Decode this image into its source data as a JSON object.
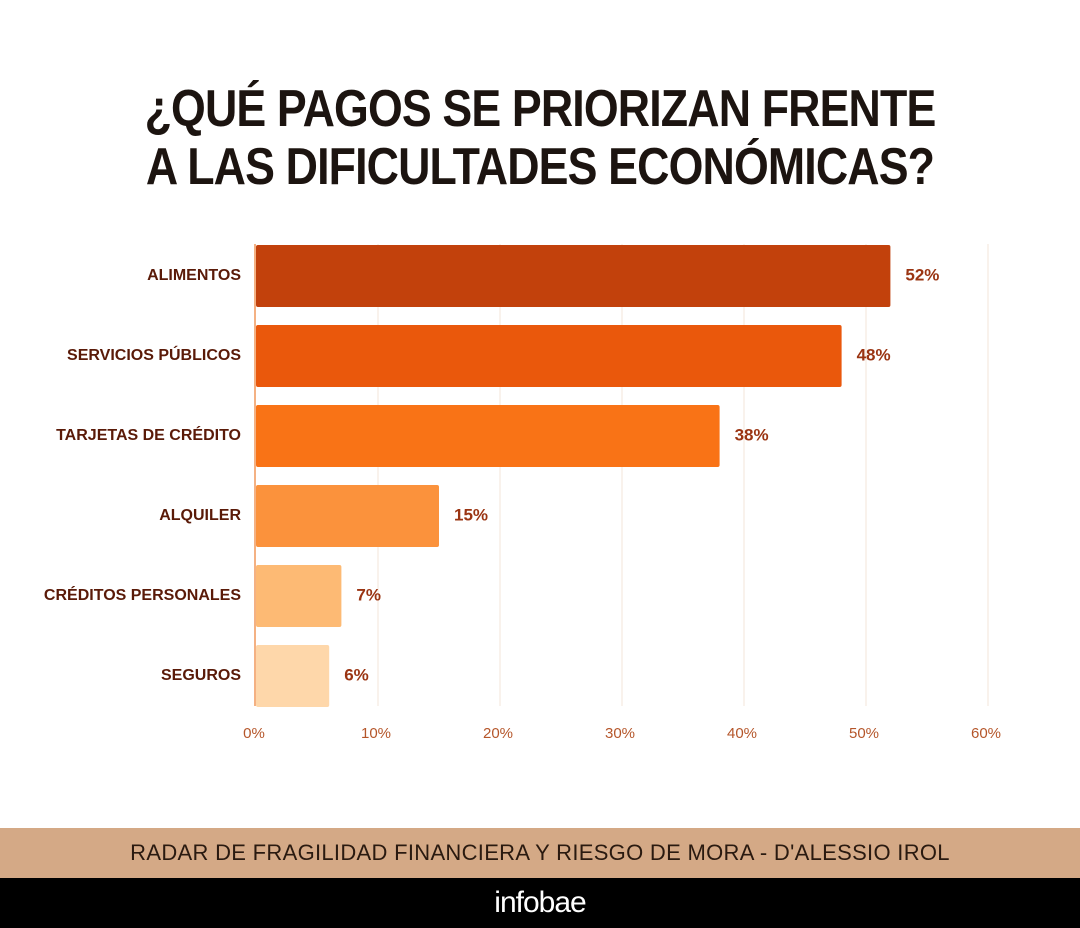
{
  "title": {
    "line1": "¿QUÉ PAGOS SE PRIORIZAN FRENTE",
    "line2": "A LAS DIFICULTADES ECONÓMICAS?"
  },
  "source": "RADAR DE FRAGILIDAD FINANCIERA Y RIESGO DE MORA - D'ALESSIO IROL",
  "logo": "infobae",
  "colors": {
    "label_text": "#5a1a08",
    "value_text": "#9a3412",
    "tick_text": "#b5562a",
    "grid": "#f3e4d8",
    "axis": "#f4b183"
  },
  "chart_data": {
    "type": "bar",
    "orientation": "horizontal",
    "categories": [
      "ALIMENTOS",
      "SERVICIOS PÚBLICOS",
      "TARJETAS DE CRÉDITO",
      "ALQUILER",
      "CRÉDITOS PERSONALES",
      "SEGUROS"
    ],
    "values": [
      52,
      48,
      38,
      15,
      7,
      6
    ],
    "value_labels": [
      "52%",
      "48%",
      "38%",
      "15%",
      "7%",
      "6%"
    ],
    "bar_colors": [
      "#c2410c",
      "#ea580c",
      "#f97316",
      "#fb923c",
      "#fdba74",
      "#fed7aa"
    ],
    "xlim": [
      0,
      60
    ],
    "x_ticks": [
      0,
      10,
      20,
      30,
      40,
      50,
      60
    ],
    "x_tick_labels": [
      "0%",
      "10%",
      "20%",
      "30%",
      "40%",
      "50%",
      "60%"
    ],
    "grid": true,
    "xlabel": "",
    "ylabel": ""
  }
}
